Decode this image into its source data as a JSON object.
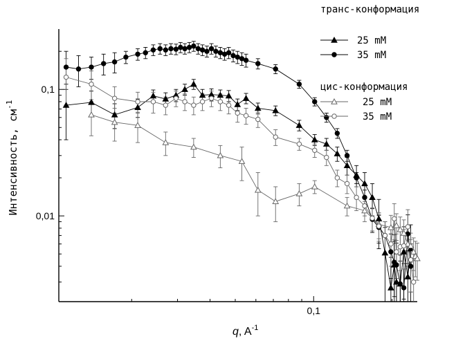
{
  "chart_data": {
    "type": "scatter",
    "xlabel": "q, A",
    "xlabel_italic_part": "q",
    "xlabel_rest": ", A",
    "xlabel_sup": "-1",
    "ylabel": "Интенсивность, см",
    "ylabel_sup": "-1",
    "x_scale": "log",
    "y_scale": "log",
    "xlim": [
      0.0105,
      0.25
    ],
    "ylim": [
      0.0021,
      0.3
    ],
    "x_tick_labels": [
      {
        "value": 0.1,
        "label": "0,1"
      }
    ],
    "y_tick_labels": [
      {
        "value": 0.1,
        "label": "0,1"
      },
      {
        "value": 0.01,
        "label": "0,01"
      }
    ],
    "legend_groups": [
      {
        "title": "транс-конформация",
        "entries": [
          "25 mM",
          "35 mM"
        ]
      },
      {
        "title": "цис-конформация",
        "entries": [
          "25 mM",
          "35 mM"
        ]
      }
    ],
    "series": [
      {
        "name": "25 mM",
        "group": "транс-конформация",
        "marker": "triangle",
        "filled": true,
        "x": [
          0.0112,
          0.014,
          0.0172,
          0.0211,
          0.0242,
          0.027,
          0.0296,
          0.032,
          0.0346,
          0.0374,
          0.0405,
          0.0438,
          0.0472,
          0.051,
          0.055,
          0.0611,
          0.0714,
          0.088,
          0.1009,
          0.112,
          0.1232,
          0.1344,
          0.146,
          0.157,
          0.168,
          0.178,
          0.188,
          0.198,
          0.204,
          0.208,
          0.215,
          0.222,
          0.23,
          0.236
        ],
        "y": [
          0.075,
          0.079,
          0.063,
          0.072,
          0.089,
          0.084,
          0.09,
          0.1,
          0.11,
          0.09,
          0.091,
          0.09,
          0.089,
          0.076,
          0.085,
          0.071,
          0.068,
          0.052,
          0.04,
          0.037,
          0.031,
          0.025,
          0.021,
          0.018,
          0.014,
          0.0095,
          0.0051,
          0.0027,
          0.0041,
          0.003,
          0.0029,
          0.0052,
          0.0033,
          0.0055
        ],
        "err": [
          0.035,
          0.018,
          0.014,
          0.012,
          0.01,
          0.01,
          0.01,
          0.01,
          0.01,
          0.01,
          0.01,
          0.009,
          0.009,
          0.008,
          0.008,
          0.007,
          0.006,
          0.005,
          0.004,
          0.004,
          0.004,
          0.004,
          0.004,
          0.004,
          0.004,
          0.004,
          0.003,
          0.002,
          0.003,
          0.002,
          0.002,
          0.003,
          0.002,
          0.003
        ]
      },
      {
        "name": "35 mM",
        "group": "транс-конформация",
        "marker": "circle",
        "filled": true,
        "x": [
          0.0112,
          0.0125,
          0.014,
          0.0156,
          0.0172,
          0.019,
          0.0211,
          0.0226,
          0.0242,
          0.0257,
          0.027,
          0.0283,
          0.0296,
          0.0308,
          0.032,
          0.0333,
          0.0346,
          0.036,
          0.0374,
          0.0389,
          0.0405,
          0.0421,
          0.0438,
          0.0455,
          0.0472,
          0.0491,
          0.051,
          0.053,
          0.055,
          0.0611,
          0.0714,
          0.088,
          0.1009,
          0.112,
          0.1232,
          0.1344,
          0.146,
          0.157,
          0.168,
          0.178,
          0.188,
          0.198,
          0.204,
          0.208,
          0.215,
          0.222,
          0.23,
          0.236
        ],
        "y": [
          0.15,
          0.145,
          0.15,
          0.16,
          0.165,
          0.18,
          0.19,
          0.195,
          0.205,
          0.21,
          0.205,
          0.21,
          0.208,
          0.215,
          0.21,
          0.215,
          0.22,
          0.21,
          0.205,
          0.2,
          0.21,
          0.2,
          0.195,
          0.19,
          0.195,
          0.185,
          0.18,
          0.175,
          0.17,
          0.16,
          0.145,
          0.11,
          0.08,
          0.06,
          0.045,
          0.03,
          0.02,
          0.014,
          0.0094,
          0.0081,
          0.007,
          0.0052,
          0.0043,
          0.0041,
          0.0029,
          0.0027,
          0.0072,
          0.004
        ],
        "err": [
          0.05,
          0.04,
          0.03,
          0.03,
          0.03,
          0.02,
          0.02,
          0.02,
          0.02,
          0.02,
          0.02,
          0.02,
          0.02,
          0.02,
          0.02,
          0.02,
          0.02,
          0.02,
          0.02,
          0.02,
          0.02,
          0.02,
          0.02,
          0.02,
          0.02,
          0.02,
          0.02,
          0.02,
          0.02,
          0.015,
          0.012,
          0.008,
          0.006,
          0.005,
          0.004,
          0.003,
          0.002,
          0.002,
          0.002,
          0.002,
          0.002,
          0.002,
          0.002,
          0.002,
          0.0015,
          0.0015,
          0.003,
          0.002
        ]
      },
      {
        "name": "25 mM",
        "group": "цис-конформация",
        "marker": "triangle",
        "filled": false,
        "x": [
          0.014,
          0.0172,
          0.0211,
          0.027,
          0.0346,
          0.0438,
          0.053,
          0.0611,
          0.0714,
          0.088,
          0.1009,
          0.1344,
          0.157,
          0.178,
          0.198,
          0.208,
          0.215,
          0.222,
          0.23,
          0.236,
          0.242,
          0.246,
          0.25
        ],
        "y": [
          0.063,
          0.055,
          0.052,
          0.038,
          0.035,
          0.03,
          0.027,
          0.016,
          0.013,
          0.015,
          0.017,
          0.012,
          0.011,
          0.0086,
          0.0081,
          0.0084,
          0.0078,
          0.0073,
          0.006,
          0.0058,
          0.0052,
          0.0048,
          0.0046
        ],
        "err": [
          0.02,
          0.016,
          0.014,
          0.008,
          0.006,
          0.006,
          0.008,
          0.006,
          0.004,
          0.003,
          0.002,
          0.002,
          0.002,
          0.002,
          0.002,
          0.002,
          0.002,
          0.002,
          0.002,
          0.0015,
          0.0015,
          0.0015,
          0.0015
        ]
      },
      {
        "name": "35 mM",
        "group": "цис-конформация",
        "marker": "circle",
        "filled": false,
        "x": [
          0.0112,
          0.014,
          0.0172,
          0.0211,
          0.0242,
          0.027,
          0.0296,
          0.032,
          0.0346,
          0.0374,
          0.0405,
          0.0438,
          0.0472,
          0.051,
          0.055,
          0.0611,
          0.0714,
          0.088,
          0.1009,
          0.112,
          0.1232,
          0.1344,
          0.146,
          0.157,
          0.168,
          0.178,
          0.188,
          0.198,
          0.204,
          0.208,
          0.215,
          0.222,
          0.23,
          0.236,
          0.242
        ],
        "y": [
          0.125,
          0.11,
          0.085,
          0.08,
          0.08,
          0.075,
          0.085,
          0.08,
          0.075,
          0.08,
          0.085,
          0.08,
          0.075,
          0.065,
          0.062,
          0.058,
          0.042,
          0.037,
          0.033,
          0.029,
          0.02,
          0.018,
          0.014,
          0.012,
          0.0096,
          0.0083,
          0.007,
          0.006,
          0.0095,
          0.0052,
          0.0057,
          0.0058,
          0.0082,
          0.0045,
          0.003
        ],
        "err": [
          0.05,
          0.03,
          0.02,
          0.015,
          0.015,
          0.012,
          0.012,
          0.012,
          0.012,
          0.012,
          0.012,
          0.012,
          0.011,
          0.01,
          0.009,
          0.008,
          0.006,
          0.004,
          0.004,
          0.004,
          0.003,
          0.003,
          0.003,
          0.002,
          0.002,
          0.002,
          0.002,
          0.002,
          0.003,
          0.002,
          0.002,
          0.002,
          0.003,
          0.002,
          0.0015
        ]
      }
    ]
  }
}
